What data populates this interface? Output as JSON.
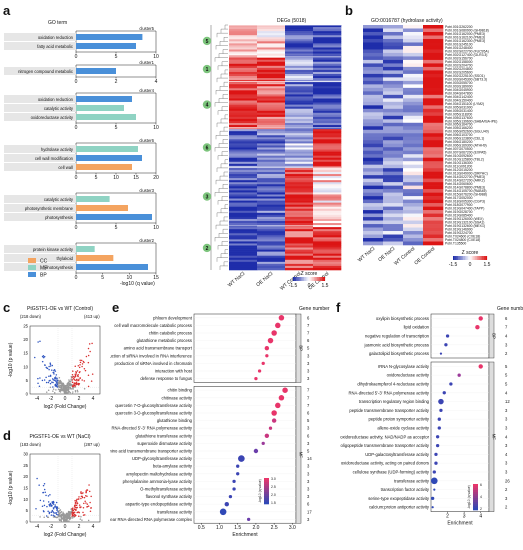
{
  "panel_letters": {
    "a": "a",
    "b": "b",
    "c": "c",
    "d": "d",
    "e": "e",
    "f": "f"
  },
  "colors": {
    "CC": "#f4a460",
    "MF": "#8fd3c3",
    "BP": "#4a90d9",
    "heat_low": "#2233aa",
    "heat_high": "#dd1111"
  },
  "panel_a": {
    "go_term_header": "GO term",
    "xlabel": "-log10 (q value)",
    "legend": [
      {
        "key": "CC",
        "label": "CC"
      },
      {
        "key": "MF",
        "label": "MF"
      },
      {
        "key": "BP",
        "label": "BP"
      }
    ],
    "clusters": [
      {
        "name": "cluster5",
        "terms": [
          {
            "label": "oxidation reduction",
            "cat": "BP",
            "value": 8.3
          },
          {
            "label": "fatty acid metabolic",
            "cat": "BP",
            "value": 7.5
          }
        ],
        "ticks": [
          "0",
          "5",
          "10"
        ],
        "xmax": 10
      },
      {
        "name": "cluster1",
        "terms": [
          {
            "label": "nitrogen compound metabolic",
            "cat": "BP",
            "value": 2.0
          }
        ],
        "ticks": [
          "0",
          "2",
          "4"
        ],
        "xmax": 4
      },
      {
        "name": "cluster4",
        "terms": [
          {
            "label": "oxidation reduction",
            "cat": "BP",
            "value": 7.0
          },
          {
            "label": "catalytic activity",
            "cat": "MF",
            "value": 6.0
          },
          {
            "label": "oxidoreductase activity",
            "cat": "MF",
            "value": 7.5
          }
        ],
        "ticks": [
          "0",
          "5",
          "10"
        ],
        "xmax": 10
      },
      {
        "name": "cluster6",
        "terms": [
          {
            "label": "hydrolase activity",
            "cat": "MF",
            "value": 15.5
          },
          {
            "label": "cell wall modification",
            "cat": "BP",
            "value": 16.5
          },
          {
            "label": "cell wall",
            "cat": "CC",
            "value": 14.0
          }
        ],
        "ticks": [
          "0",
          "5",
          "10",
          "15",
          "20"
        ],
        "xmax": 20
      },
      {
        "name": "cluster3",
        "terms": [
          {
            "label": "catalytic activity",
            "cat": "MF",
            "value": 4.2
          },
          {
            "label": "photosynthetic membrane",
            "cat": "CC",
            "value": 6.5
          },
          {
            "label": "photosynthesis",
            "cat": "BP",
            "value": 9.5
          }
        ],
        "ticks": [
          "0",
          "5",
          "10"
        ],
        "xmax": 10
      },
      {
        "name": "cluster2",
        "terms": [
          {
            "label": "protein kinase activity",
            "cat": "MF",
            "value": 3.5
          },
          {
            "label": "thylakoid",
            "cat": "CC",
            "value": 7.0
          },
          {
            "label": "photosynthesis",
            "cat": "BP",
            "value": 13.5
          }
        ],
        "ticks": [
          "0",
          "5",
          "10",
          "15"
        ],
        "xmax": 15
      }
    ],
    "heatmap_title": "DEGs (5018)",
    "heat_columns": [
      "WT NaCl",
      "OE NaCl",
      "WT Control",
      "OE Control"
    ],
    "cluster_numbers": [
      "5",
      "1",
      "4",
      "6",
      "3",
      "2"
    ],
    "zscore_label": "Z score",
    "zscore_ticks": [
      "-1.5",
      "0",
      "1.5"
    ]
  },
  "panel_b": {
    "title": "GO:0016787 (hydrolase activity)",
    "columns": [
      "WT NaCl",
      "OE NaCl",
      "WT Control",
      "OE Control"
    ],
    "genes": [
      "Potri.001G262200",
      "Potri.001G080900 (GH9B18)",
      "Potri.001G162000 (PME3)",
      "Potri.001G162100 (PME3)",
      "Potri.001G162300 (PME3)",
      "Potri.001G245100",
      "Potri.001G248400",
      "Potri.002G022700 (FUC95A)",
      "Potri.002G127400 (GLR3.3)",
      "Potri.002G156700",
      "Potri.002G158000",
      "Potri.002G204700",
      "Potri.002G204800",
      "Potri.002G205600",
      "Potri.002G225100 (SSO1)",
      "Potri.003G045300 (SBT3.3)",
      "Potri.003G055700",
      "Potri.003G189000",
      "Potri.004G045900",
      "Potri.004G047800",
      "Potri.004G142400",
      "Potri.004G150400",
      "Potri.004G151100 (LYM2)",
      "Potri.005G031900",
      "Potri.005G031400",
      "Potri.005G118200",
      "Potri.005G137600",
      "Potri.005G139600 (SABA/iSA-iPE)",
      "Potri.005G164700",
      "Potri.005G166200",
      "Potri.006G052600 (SGLU40)",
      "Potri.006G103700",
      "Potri.006G123800 (CEL1)",
      "Potri.006G180200",
      "Potri.006G169300 (ATHH9)",
      "Potri.007G070500",
      "Potri.007G067200 (EXPA5)",
      "Potri.010G092600",
      "Potri.010G125800 (TBL2)",
      "Potri.010G136300",
      "Potri.011G091200",
      "Potri.012G015200",
      "Potri.013G049000 (DRPHC)",
      "Potri.014G022700 (PME3)",
      "Potri.014G027200 (ARK2)",
      "Potri.014G060600",
      "Potri.014G078800 (PME3)",
      "Potri.014G105700 (RAB45)",
      "Potri.015G076200 (GH9B8)",
      "Potri.017G052000",
      "Potri.018G005300 (CGP3)",
      "Potri.018G077900",
      "Potri.019G047400 (TAPP)",
      "Potri.019G028700",
      "Potri.019G085400",
      "Potri.019G126000 (WEX)",
      "Potri.019G132100 (SSA1)",
      "Potri.019G132600 (MEX1)",
      "Potri.019G146900",
      "Potri.019G224700",
      "Potri.T024600 (CXE18)",
      "Potri.T024800 (CXE18)",
      "Potri.T135500"
    ],
    "zscore_label": "Z score",
    "zscore_ticks": [
      "-1.5",
      "0",
      "1.5"
    ]
  },
  "panel_c": {
    "title": "PtGSTF1-OE vs WT (Control)",
    "down_count": "(218 down)",
    "up_count": "(413 up)",
    "xlabel": "log2 (Fold Change)",
    "ylabel": "-log10 (p value)",
    "xticks": [
      "-4",
      "-2",
      "0",
      "2",
      "4"
    ],
    "yticks": [
      "0",
      "5",
      "10",
      "15",
      "20",
      "25"
    ]
  },
  "panel_d": {
    "title": "PtGSTF1-OE vs WT (NaCl)",
    "down_count": "(183 down)",
    "up_count": "(287 up)",
    "xlabel": "log2 (Fold Change)",
    "ylabel": "-log10 (p value)",
    "xticks": [
      "-4",
      "-2",
      "0",
      "2",
      "4"
    ],
    "yticks": [
      "0",
      "5",
      "10",
      "15",
      "20",
      "25",
      "30"
    ]
  },
  "panel_e": {
    "gene_number_header": "Gene number",
    "xlabel": "Enrichment",
    "xticks": [
      "0.5",
      "1.0",
      "1.5",
      "2.0",
      "2.5",
      "3.0"
    ],
    "colorbar_label": "-log10 (q value)",
    "colorbar_ticks": [
      "3.0",
      "2.5",
      "2.0",
      "1.5"
    ],
    "bp_terms": [
      {
        "label": "phloem development",
        "enrich": 2.7,
        "genes": "6",
        "size": 5,
        "color": "#e8356a"
      },
      {
        "label": "cell wall macromolecule catabolic process",
        "enrich": 2.6,
        "genes": "7",
        "size": 5,
        "color": "#e8356a"
      },
      {
        "label": "chitin catabolic process",
        "enrich": 2.5,
        "genes": "7",
        "size": 5,
        "color": "#e8356a"
      },
      {
        "label": "glutathione metabolic process",
        "enrich": 2.4,
        "genes": "6",
        "size": 5,
        "color": "#e8356a"
      },
      {
        "label": "amino acid transmembrane transport",
        "enrich": 2.3,
        "genes": "5",
        "size": 4,
        "color": "#e8356a"
      },
      {
        "label": "production of siRNA involved in RNA interference",
        "enrich": 2.3,
        "genes": "3",
        "size": 3,
        "color": "#e8356a"
      },
      {
        "label": "production of siRNA involved in chromatin",
        "enrich": 2.2,
        "genes": "3",
        "size": 3,
        "color": "#e8356a"
      },
      {
        "label": "interaction with host",
        "enrich": 2.1,
        "genes": "3",
        "size": 3,
        "color": "#e8356a"
      },
      {
        "label": "defense response to fungus",
        "enrich": 2.0,
        "genes": "3",
        "size": 3,
        "color": "#e8356a"
      }
    ],
    "mf_terms": [
      {
        "label": "chitin binding",
        "enrich": 2.8,
        "genes": "7",
        "size": 5,
        "color": "#e8356a"
      },
      {
        "label": "chitinase activity",
        "enrich": 2.7,
        "genes": "7",
        "size": 5,
        "color": "#e8356a"
      },
      {
        "label": "quercetin 7-O-glucosyltransferase activity",
        "enrich": 2.6,
        "genes": "7",
        "size": 5,
        "color": "#e8356a"
      },
      {
        "label": "quercetin 3-O-glucosyltransferase activity",
        "enrich": 2.5,
        "genes": "6",
        "size": 5,
        "color": "#e8356a"
      },
      {
        "label": "glutathione binding",
        "enrich": 2.5,
        "genes": "5",
        "size": 4,
        "color": "#c9367f"
      },
      {
        "label": "RNA-directed 5'-3' RNA polymerase activity",
        "enrich": 2.4,
        "genes": "3",
        "size": 3,
        "color": "#c9367f"
      },
      {
        "label": "glutathione transferase activity",
        "enrich": 2.3,
        "genes": "6",
        "size": 4,
        "color": "#c9367f"
      },
      {
        "label": "superoxide dismutase activity",
        "enrich": 2.2,
        "genes": "3",
        "size": 3,
        "color": "#9b3a9a"
      },
      {
        "label": "amino acid transmembrane transporter activity",
        "enrich": 2.0,
        "genes": "5",
        "size": 4,
        "color": "#6a3daa"
      },
      {
        "label": "UDP-glycosyltransferase activity",
        "enrich": 1.6,
        "genes": "14",
        "size": 6,
        "color": "#3b44b3"
      },
      {
        "label": "beta-amylase activity",
        "enrich": 1.5,
        "genes": "3",
        "size": 3,
        "color": "#3b44b3"
      },
      {
        "label": "amylopectin maltohydrolase activity",
        "enrich": 1.5,
        "genes": "3",
        "size": 3,
        "color": "#3b44b3"
      },
      {
        "label": "phenylalanine ammonia-lyase activity",
        "enrich": 1.4,
        "genes": "3",
        "size": 3,
        "color": "#3b44b3"
      },
      {
        "label": "O-methyltransferase activity",
        "enrich": 1.4,
        "genes": "3",
        "size": 3,
        "color": "#3b44b3"
      },
      {
        "label": "flavonol synthase activity",
        "enrich": 1.3,
        "genes": "3",
        "size": 3,
        "color": "#3b44b3"
      },
      {
        "label": "aspartic-type endopeptidase activity",
        "enrich": 1.2,
        "genes": "6",
        "size": 4,
        "color": "#3b44b3"
      },
      {
        "label": "transferase activity",
        "enrich": 1.1,
        "genes": "17",
        "size": 6,
        "color": "#2f48b6"
      },
      {
        "label": "nuclear RNA-directed RNA polymerase complex",
        "enrich": 1.8,
        "genes": "3",
        "size": 3,
        "color": "#6a3daa"
      }
    ],
    "cat_bp": "BP",
    "cat_mf": "MF",
    "cat_cc": "CC"
  },
  "panel_f": {
    "gene_number_header": "Gene number",
    "xlabel": "Enrichment",
    "xticks": [
      "2",
      "3",
      "4"
    ],
    "colorbar_label": "-log10 (q value)",
    "colorbar_ticks": [
      "6",
      "4",
      "2"
    ],
    "bp_terms": [
      {
        "label": "oxylipin biosynthetic process",
        "enrich": 4.0,
        "genes": "6",
        "size": 4,
        "color": "#e8356a"
      },
      {
        "label": "lipid oxidation",
        "enrich": 3.8,
        "genes": "7",
        "size": 4,
        "color": "#e8356a"
      },
      {
        "label": "negative regulation of transcription",
        "enrich": 2.0,
        "genes": "4",
        "size": 3,
        "color": "#3b44b3"
      },
      {
        "label": "jasmonic acid biosynthetic process",
        "enrich": 1.9,
        "genes": "3",
        "size": 3,
        "color": "#3b44b3"
      },
      {
        "label": "galactolipid biosynthetic process",
        "enrich": 1.6,
        "genes": "2",
        "size": 2,
        "color": "#3b44b3"
      }
    ],
    "mf_terms": [
      {
        "label": "rRNA N-glycosylase activity",
        "enrich": 4.0,
        "genes": "5",
        "size": 4,
        "color": "#e8356a"
      },
      {
        "label": "oxidoreductase activity",
        "enrich": 2.7,
        "genes": "5",
        "size": 3,
        "color": "#9b3a9a"
      },
      {
        "label": "dihydrokaempferol 4-reductase activity",
        "enrich": 2.2,
        "genes": "5",
        "size": 3,
        "color": "#3b44b3"
      },
      {
        "label": "RNA-directed 5'-3' RNA polymerase activity",
        "enrich": 1.8,
        "genes": "4",
        "size": 3,
        "color": "#3b44b3"
      },
      {
        "label": "transcription regulatory region binding",
        "enrich": 1.6,
        "genes": "12",
        "size": 5,
        "color": "#3b44b3"
      },
      {
        "label": "peptide transmembrane transporter activity",
        "enrich": 1.6,
        "genes": "3",
        "size": 3,
        "color": "#3b44b3"
      },
      {
        "label": "peptide proton symporter activity",
        "enrich": 1.5,
        "genes": "3",
        "size": 3,
        "color": "#3b44b3"
      },
      {
        "label": "allene-oxide cyclase activity",
        "enrich": 1.5,
        "genes": "3",
        "size": 3,
        "color": "#3b44b3"
      },
      {
        "label": "oxidoreductase activity, NAD/NADP as acceptor",
        "enrich": 1.4,
        "genes": "4",
        "size": 3,
        "color": "#3b44b3"
      },
      {
        "label": "oligopeptide transmembrane transporter activity",
        "enrich": 1.4,
        "genes": "3",
        "size": 3,
        "color": "#3b44b3"
      },
      {
        "label": "UDP-galactosyltransferase activity",
        "enrich": 1.3,
        "genes": "4",
        "size": 3,
        "color": "#3b44b3"
      },
      {
        "label": "oxidoreductase activity, acting on paired donors",
        "enrich": 1.3,
        "genes": "3",
        "size": 3,
        "color": "#3b44b3"
      },
      {
        "label": "cellulose synthase (UDP-forming) activity",
        "enrich": 1.2,
        "genes": "3",
        "size": 3,
        "color": "#3b44b3"
      },
      {
        "label": "transferase activity",
        "enrich": 1.2,
        "genes": "26",
        "size": 6,
        "color": "#2f48b6"
      },
      {
        "label": "transcription factor activity",
        "enrich": 1.2,
        "genes": "2",
        "size": 2,
        "color": "#2f48b6"
      },
      {
        "label": "serine-type exopeptidase activity",
        "enrich": 1.1,
        "genes": "3",
        "size": 3,
        "color": "#2f48b6"
      },
      {
        "label": "calcium:proton antiporter activity",
        "enrich": 1.1,
        "genes": "2",
        "size": 2,
        "color": "#2f48b6"
      }
    ],
    "cat_bp": "BP",
    "cat_mf": "MF"
  }
}
